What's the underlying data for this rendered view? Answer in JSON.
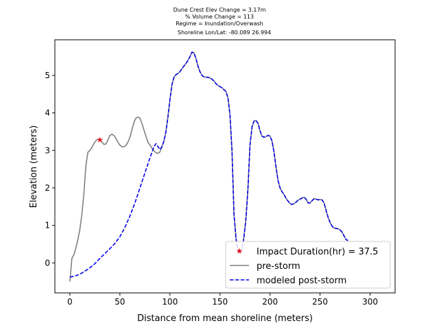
{
  "chart_data": {
    "type": "line",
    "title_lines": [
      "Dune Crest Elev Change = 3.17m",
      "% Volume Change = 113",
      "Regime = Inundation/Overwash",
      "Shoreline Lon/Lat: -80.089 26.994"
    ],
    "xlabel": "Distance from mean shoreline (meters)",
    "ylabel": "Elevation (meters)",
    "xlim": [
      -15,
      325
    ],
    "ylim": [
      -0.8,
      5.95
    ],
    "xticks": [
      0,
      50,
      100,
      150,
      200,
      250,
      300
    ],
    "yticks": [
      0,
      1,
      2,
      3,
      4,
      5
    ],
    "grid": false,
    "legend_position": "lower-right",
    "series": [
      {
        "name": "Impact Duration(hr) = 37.5",
        "kind": "marker",
        "color": "#e8141e",
        "points": [
          [
            30,
            3.28
          ]
        ]
      },
      {
        "name": "pre-storm",
        "kind": "solid",
        "color": "#808080",
        "points": [
          [
            0,
            -0.5
          ],
          [
            2,
            0.12
          ],
          [
            4,
            0.22
          ],
          [
            6,
            0.4
          ],
          [
            8,
            0.62
          ],
          [
            10,
            0.9
          ],
          [
            12,
            1.3
          ],
          [
            14,
            1.85
          ],
          [
            16,
            2.6
          ],
          [
            18,
            2.95
          ],
          [
            20,
            3.0
          ],
          [
            22,
            3.08
          ],
          [
            24,
            3.18
          ],
          [
            26,
            3.26
          ],
          [
            28,
            3.3
          ],
          [
            30,
            3.28
          ],
          [
            32,
            3.22
          ],
          [
            34,
            3.16
          ],
          [
            36,
            3.17
          ],
          [
            38,
            3.28
          ],
          [
            40,
            3.4
          ],
          [
            42,
            3.43
          ],
          [
            44,
            3.4
          ],
          [
            46,
            3.32
          ],
          [
            48,
            3.22
          ],
          [
            50,
            3.14
          ],
          [
            52,
            3.1
          ],
          [
            54,
            3.1
          ],
          [
            56,
            3.13
          ],
          [
            58,
            3.22
          ],
          [
            60,
            3.35
          ],
          [
            62,
            3.55
          ],
          [
            64,
            3.75
          ],
          [
            66,
            3.86
          ],
          [
            68,
            3.89
          ],
          [
            70,
            3.86
          ],
          [
            72,
            3.72
          ],
          [
            74,
            3.55
          ],
          [
            76,
            3.38
          ],
          [
            78,
            3.22
          ],
          [
            80,
            3.14
          ],
          [
            82,
            3.06
          ],
          [
            84,
            2.99
          ],
          [
            86,
            2.94
          ],
          [
            88,
            2.92
          ],
          [
            90,
            2.96
          ],
          [
            92,
            3.1
          ],
          [
            94,
            3.25
          ],
          [
            96,
            3.5
          ],
          [
            98,
            3.9
          ],
          [
            100,
            4.35
          ],
          [
            102,
            4.75
          ],
          [
            104,
            4.95
          ],
          [
            106,
            5.02
          ],
          [
            108,
            5.05
          ],
          [
            110,
            5.1
          ],
          [
            112,
            5.18
          ],
          [
            114,
            5.25
          ],
          [
            116,
            5.32
          ],
          [
            118,
            5.4
          ],
          [
            120,
            5.5
          ],
          [
            122,
            5.62
          ],
          [
            124,
            5.6
          ],
          [
            126,
            5.45
          ],
          [
            128,
            5.25
          ],
          [
            130,
            5.1
          ],
          [
            132,
            5.0
          ],
          [
            134,
            4.96
          ],
          [
            136,
            4.95
          ],
          [
            138,
            4.95
          ],
          [
            140,
            4.93
          ],
          [
            142,
            4.9
          ],
          [
            144,
            4.85
          ],
          [
            146,
            4.78
          ],
          [
            148,
            4.73
          ],
          [
            150,
            4.7
          ],
          [
            152,
            4.67
          ],
          [
            154,
            4.62
          ],
          [
            156,
            4.57
          ],
          [
            158,
            4.4
          ],
          [
            160,
            3.95
          ],
          [
            162,
            3.0
          ],
          [
            164,
            1.3
          ],
          [
            166,
            0.65
          ],
          [
            168,
            0.3
          ],
          [
            170,
            0.25
          ],
          [
            172,
            0.35
          ],
          [
            174,
            0.7
          ],
          [
            176,
            1.2
          ],
          [
            178,
            2.0
          ],
          [
            180,
            3.15
          ],
          [
            182,
            3.62
          ],
          [
            184,
            3.78
          ],
          [
            186,
            3.8
          ],
          [
            188,
            3.72
          ],
          [
            190,
            3.52
          ],
          [
            192,
            3.38
          ],
          [
            194,
            3.35
          ],
          [
            196,
            3.37
          ],
          [
            198,
            3.4
          ],
          [
            200,
            3.38
          ],
          [
            202,
            3.25
          ],
          [
            204,
            2.95
          ],
          [
            206,
            2.55
          ],
          [
            208,
            2.2
          ],
          [
            210,
            2.0
          ],
          [
            212,
            1.9
          ],
          [
            214,
            1.82
          ],
          [
            216,
            1.72
          ],
          [
            218,
            1.65
          ],
          [
            220,
            1.58
          ],
          [
            222,
            1.56
          ],
          [
            224,
            1.58
          ],
          [
            226,
            1.62
          ],
          [
            228,
            1.67
          ],
          [
            230,
            1.7
          ],
          [
            232,
            1.73
          ],
          [
            234,
            1.75
          ],
          [
            236,
            1.7
          ],
          [
            238,
            1.6
          ],
          [
            240,
            1.6
          ],
          [
            242,
            1.66
          ],
          [
            244,
            1.71
          ],
          [
            246,
            1.7
          ],
          [
            248,
            1.68
          ],
          [
            250,
            1.69
          ],
          [
            252,
            1.68
          ],
          [
            254,
            1.6
          ],
          [
            256,
            1.4
          ],
          [
            258,
            1.22
          ],
          [
            260,
            1.08
          ],
          [
            262,
            0.98
          ],
          [
            264,
            0.93
          ],
          [
            266,
            0.92
          ],
          [
            268,
            0.91
          ],
          [
            270,
            0.88
          ],
          [
            272,
            0.82
          ],
          [
            274,
            0.72
          ],
          [
            276,
            0.62
          ],
          [
            278,
            0.6
          ]
        ]
      },
      {
        "name": "modeled post-storm",
        "kind": "dashed",
        "color": "#0000ee",
        "points": [
          [
            0,
            -0.38
          ],
          [
            5,
            -0.35
          ],
          [
            10,
            -0.3
          ],
          [
            15,
            -0.22
          ],
          [
            20,
            -0.13
          ],
          [
            25,
            -0.02
          ],
          [
            30,
            0.12
          ],
          [
            35,
            0.25
          ],
          [
            40,
            0.38
          ],
          [
            45,
            0.52
          ],
          [
            50,
            0.7
          ],
          [
            55,
            0.95
          ],
          [
            60,
            1.25
          ],
          [
            65,
            1.6
          ],
          [
            70,
            2.0
          ],
          [
            75,
            2.4
          ],
          [
            80,
            2.8
          ],
          [
            84,
            3.1
          ],
          [
            86,
            3.18
          ],
          [
            88,
            3.1
          ],
          [
            90,
            3.02
          ],
          [
            92,
            3.1
          ],
          [
            94,
            3.25
          ],
          [
            96,
            3.5
          ],
          [
            98,
            3.9
          ],
          [
            100,
            4.35
          ],
          [
            102,
            4.75
          ],
          [
            104,
            4.95
          ],
          [
            106,
            5.02
          ],
          [
            108,
            5.05
          ],
          [
            110,
            5.1
          ],
          [
            112,
            5.18
          ],
          [
            114,
            5.25
          ],
          [
            116,
            5.32
          ],
          [
            118,
            5.4
          ],
          [
            120,
            5.5
          ],
          [
            122,
            5.62
          ],
          [
            124,
            5.6
          ],
          [
            126,
            5.45
          ],
          [
            128,
            5.25
          ],
          [
            130,
            5.1
          ],
          [
            132,
            5.0
          ],
          [
            134,
            4.96
          ],
          [
            136,
            4.95
          ],
          [
            138,
            4.95
          ],
          [
            140,
            4.93
          ],
          [
            142,
            4.9
          ],
          [
            144,
            4.85
          ],
          [
            146,
            4.78
          ],
          [
            148,
            4.73
          ],
          [
            150,
            4.7
          ],
          [
            152,
            4.67
          ],
          [
            154,
            4.62
          ],
          [
            156,
            4.57
          ],
          [
            158,
            4.4
          ],
          [
            160,
            3.95
          ],
          [
            162,
            3.0
          ],
          [
            164,
            1.3
          ],
          [
            166,
            0.65
          ],
          [
            168,
            0.3
          ],
          [
            170,
            0.25
          ],
          [
            172,
            0.35
          ],
          [
            174,
            0.7
          ],
          [
            176,
            1.2
          ],
          [
            178,
            2.0
          ],
          [
            180,
            3.15
          ],
          [
            182,
            3.62
          ],
          [
            184,
            3.78
          ],
          [
            186,
            3.8
          ],
          [
            188,
            3.72
          ],
          [
            190,
            3.52
          ],
          [
            192,
            3.38
          ],
          [
            194,
            3.35
          ],
          [
            196,
            3.37
          ],
          [
            198,
            3.4
          ],
          [
            200,
            3.38
          ],
          [
            202,
            3.25
          ],
          [
            204,
            2.95
          ],
          [
            206,
            2.55
          ],
          [
            208,
            2.2
          ],
          [
            210,
            2.0
          ],
          [
            212,
            1.9
          ],
          [
            214,
            1.82
          ],
          [
            216,
            1.72
          ],
          [
            218,
            1.65
          ],
          [
            220,
            1.58
          ],
          [
            222,
            1.56
          ],
          [
            224,
            1.58
          ],
          [
            226,
            1.62
          ],
          [
            228,
            1.67
          ],
          [
            230,
            1.7
          ],
          [
            232,
            1.73
          ],
          [
            234,
            1.75
          ],
          [
            236,
            1.7
          ],
          [
            238,
            1.6
          ],
          [
            240,
            1.6
          ],
          [
            242,
            1.66
          ],
          [
            244,
            1.71
          ],
          [
            246,
            1.7
          ],
          [
            248,
            1.68
          ],
          [
            250,
            1.69
          ],
          [
            252,
            1.68
          ],
          [
            254,
            1.6
          ],
          [
            256,
            1.4
          ],
          [
            258,
            1.22
          ],
          [
            260,
            1.08
          ],
          [
            262,
            0.98
          ],
          [
            264,
            0.93
          ],
          [
            266,
            0.92
          ],
          [
            268,
            0.91
          ],
          [
            270,
            0.88
          ],
          [
            272,
            0.82
          ],
          [
            274,
            0.72
          ],
          [
            276,
            0.62
          ],
          [
            278,
            0.6
          ]
        ]
      }
    ]
  }
}
